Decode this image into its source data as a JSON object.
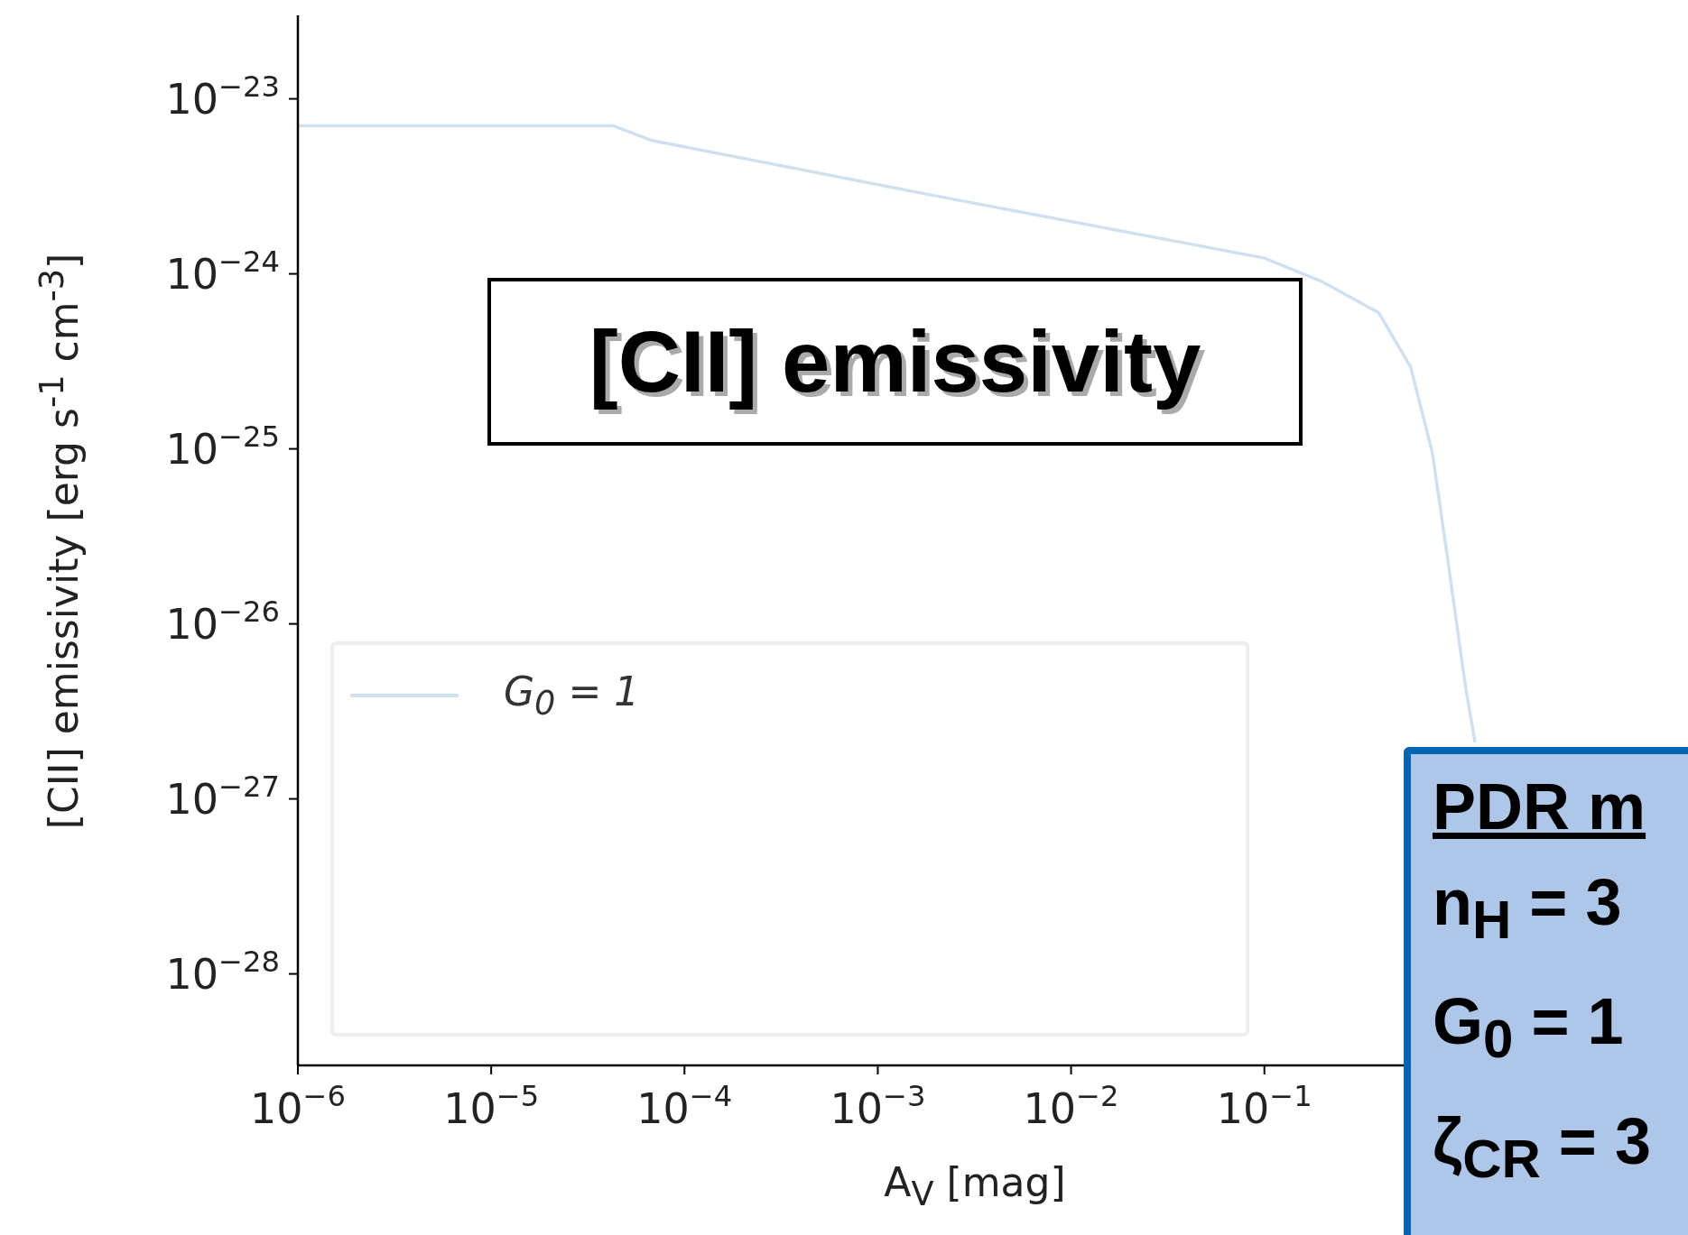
{
  "chart_data": {
    "type": "line",
    "xlabel": "A$_{V}$ [mag]",
    "ylabel": "[CII] emissivity [erg s$^{-1}$ cm$^{-3}$]",
    "log": "xy",
    "xlim": [
      1e-06,
      10
    ],
    "ylim": [
      3e-29,
      3e-23
    ],
    "xticks": [
      {
        "value": 1e-06,
        "label": "10$^{−6}$"
      },
      {
        "value": 1e-05,
        "label": "10$^{−5}$"
      },
      {
        "value": 0.0001,
        "label": "10$^{−4}$"
      },
      {
        "value": 0.001,
        "label": "10$^{−3}$"
      },
      {
        "value": 0.01,
        "label": "10$^{−2}$"
      },
      {
        "value": 0.1,
        "label": "10$^{−1}$"
      }
    ],
    "yticks": [
      {
        "value": 1e-28,
        "label": "10$^{−28}$"
      },
      {
        "value": 1e-27,
        "label": "10$^{−27}$"
      },
      {
        "value": 1e-26,
        "label": "10$^{−26}$"
      },
      {
        "value": 1e-25,
        "label": "10$^{−25}$"
      },
      {
        "value": 1e-24,
        "label": "10$^{−24}$"
      },
      {
        "value": 1e-23,
        "label": "10$^{−23}$"
      }
    ],
    "x": [
      1e-06,
      4.3e-05,
      6.7e-05,
      0.00166,
      0.1,
      0.2,
      0.39,
      0.57,
      0.74,
      0.89,
      1.1,
      1.23
    ],
    "series": [
      {
        "name": "G$_{0}$ = 1",
        "color": "#cfe0f0",
        "values": [
          7e-24,
          7e-24,
          5.8e-24,
          2.9e-24,
          1.23e-24,
          9e-25,
          6e-25,
          2.95e-25,
          9.5e-26,
          2.3e-26,
          4.3e-27,
          2.1e-27
        ]
      }
    ],
    "legend": "lower left",
    "grid": false,
    "annotations": [
      "[CII] emissivity",
      "PDR m",
      "n$_{H}$ = 3",
      "G$_{0}$ = 1",
      "ζ$_{CR}$ = 3"
    ]
  }
}
